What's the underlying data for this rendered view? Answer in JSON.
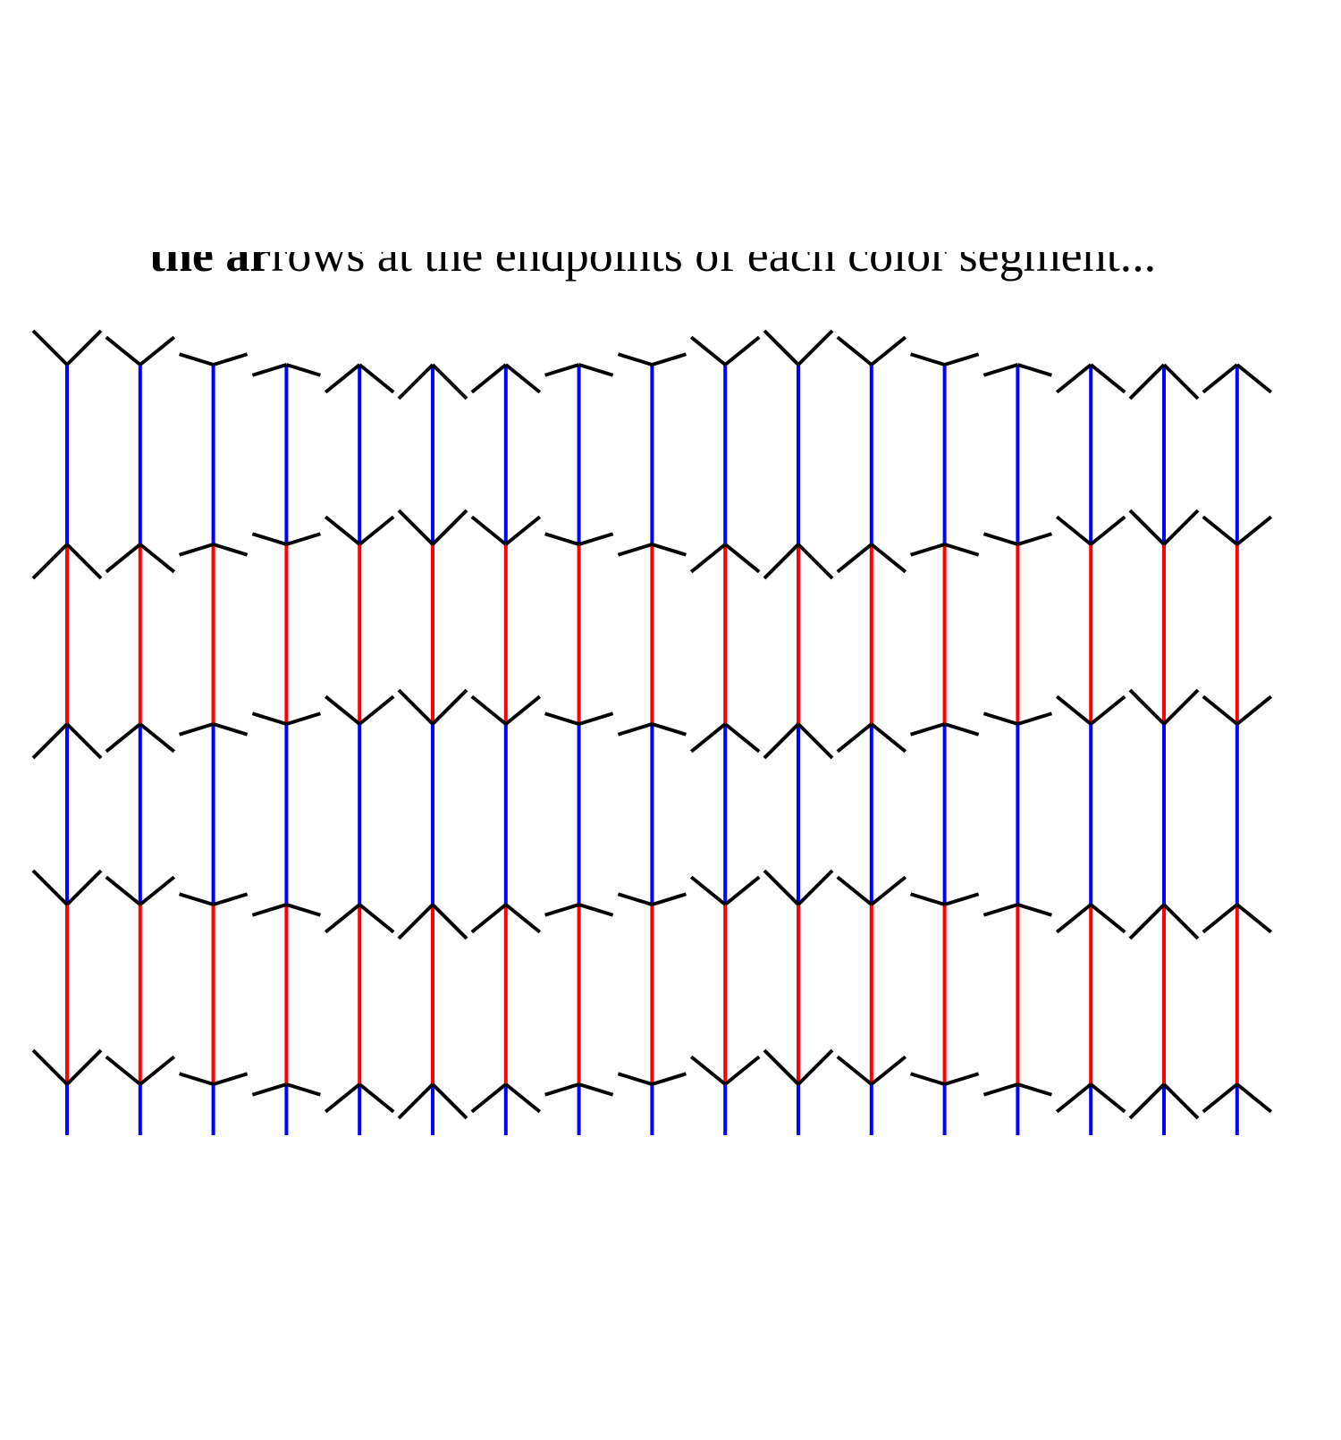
{
  "caption": {
    "bold": "the ar",
    "rest": "rows at the endpoints of each color segment..."
  }
}
